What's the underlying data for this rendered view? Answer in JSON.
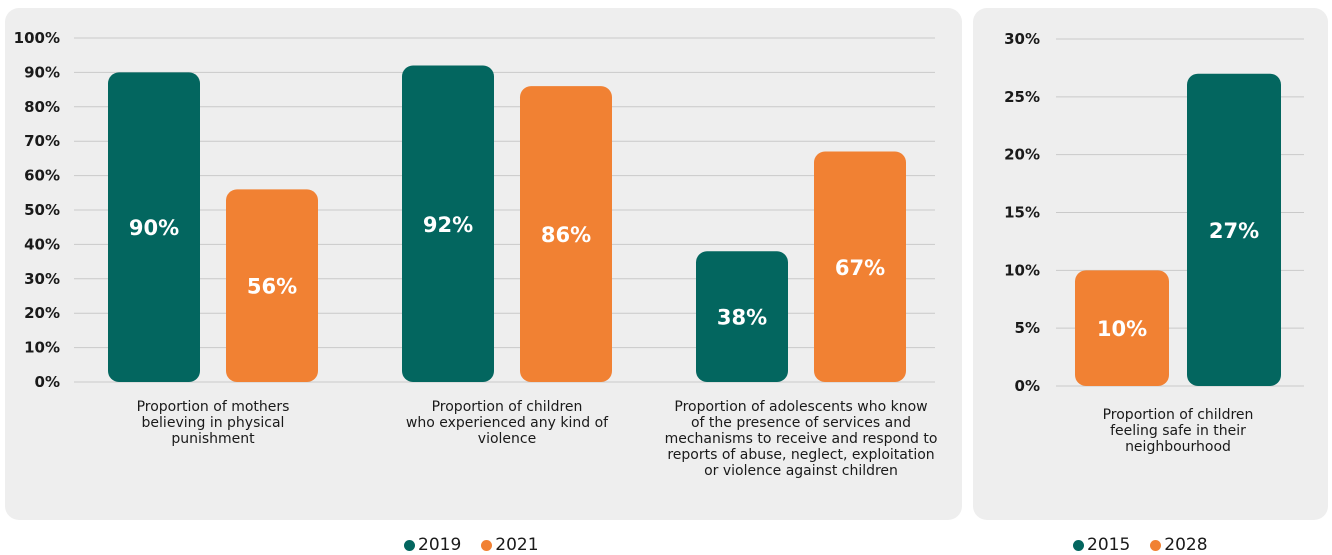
{
  "colors": {
    "teal": "#03665f",
    "orange": "#f18133",
    "grid": "#c9c9c9",
    "panel": "#eeeeee"
  },
  "chart_data": [
    {
      "type": "bar",
      "categories": [
        [
          "Proportion of mothers",
          "believing in physical",
          "punishment"
        ],
        [
          "Proportion of children",
          "who experienced any kind of",
          "violence"
        ],
        [
          "Proportion of adolescents who know",
          "of the presence of services and",
          "mechanisms to receive and respond to",
          "reports of abuse, neglect, exploitation",
          "or violence against children"
        ]
      ],
      "series": [
        {
          "name": "2019",
          "color": "#03665f",
          "values": [
            90,
            92,
            38
          ],
          "labels": [
            "90%",
            "92%",
            "38%"
          ]
        },
        {
          "name": "2021",
          "color": "#f18133",
          "values": [
            56,
            86,
            67
          ],
          "labels": [
            "56%",
            "86%",
            "67%"
          ]
        }
      ],
      "ylim": [
        0,
        100
      ],
      "yticks": [
        0,
        10,
        20,
        30,
        40,
        50,
        60,
        70,
        80,
        90,
        100
      ],
      "ytick_labels": [
        "0%",
        "10%",
        "20%",
        "30%",
        "40%",
        "50%",
        "60%",
        "70%",
        "80%",
        "90%",
        "100%"
      ],
      "grid": true,
      "legend": "bottom-center"
    },
    {
      "type": "bar",
      "categories": [
        [
          "Proportion of children",
          "feeling safe in their",
          "neighbourhood"
        ]
      ],
      "series": [
        {
          "name": "2015",
          "color": "#03665f",
          "values": [
            27
          ],
          "labels": [
            "27%"
          ]
        },
        {
          "name": "2028",
          "color": "#f18133",
          "values": [
            10
          ],
          "labels": [
            "10%"
          ]
        }
      ],
      "bar_order": [
        "2028",
        "2015"
      ],
      "ylim": [
        0,
        30
      ],
      "yticks": [
        0,
        5,
        10,
        15,
        20,
        25,
        30
      ],
      "ytick_labels": [
        "0%",
        "5%",
        "10%",
        "15%",
        "20%",
        "25%",
        "30%"
      ],
      "grid": true,
      "legend": "bottom-center"
    }
  ]
}
